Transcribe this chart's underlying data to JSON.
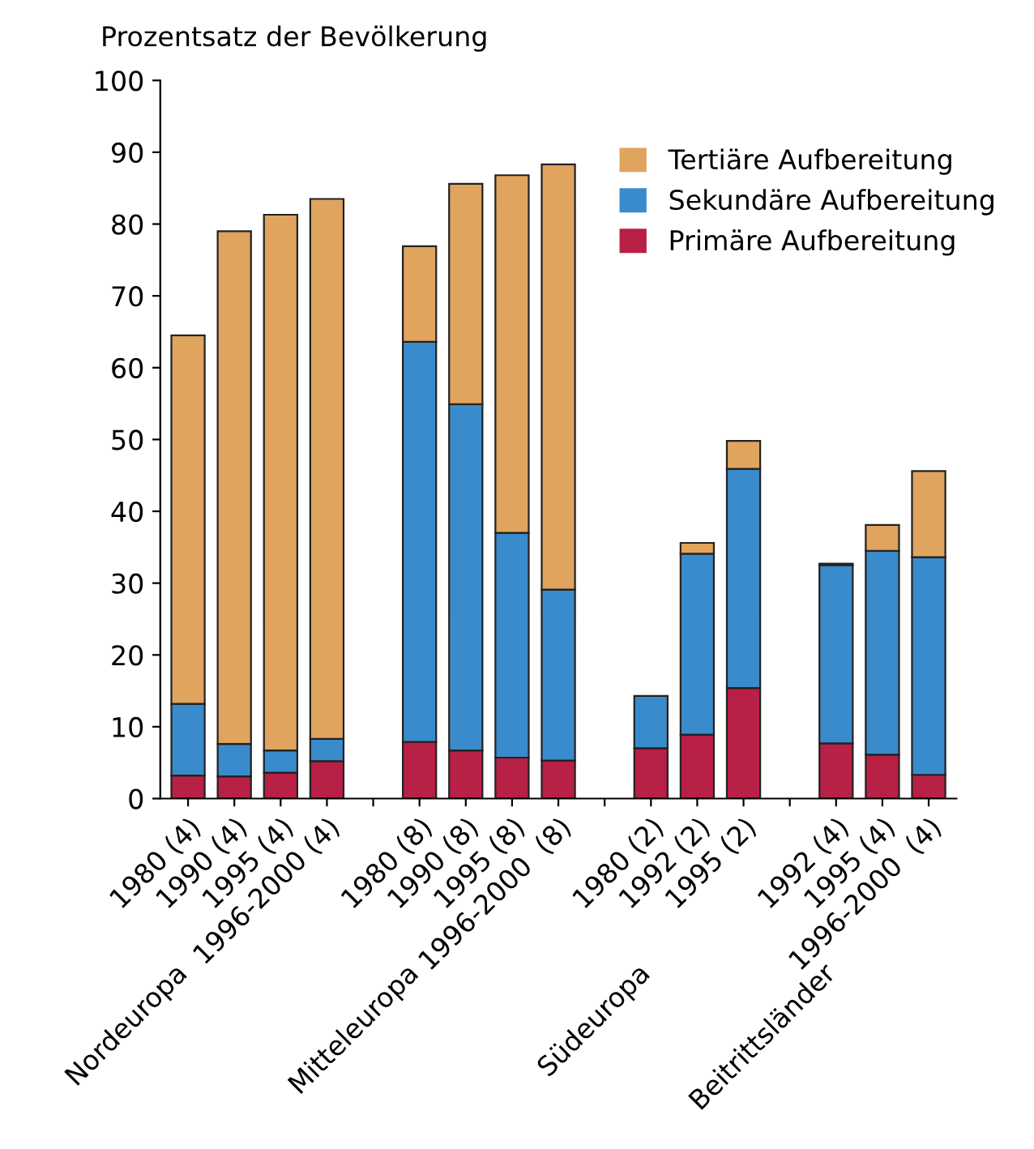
{
  "chart_data": {
    "type": "bar",
    "stacked": true,
    "ylabel": "Prozentsatz der Bevölkerung",
    "categories": [
      "1980 (4)",
      "1990 (4)",
      "1995 (4)",
      "1996-2000 (4)",
      null,
      "1980 (8)",
      "1990 (8)",
      "1995 (8)",
      "1996-2000  (8)",
      null,
      "1980 (2)",
      "1992 (2)",
      "1995 (2)",
      null,
      "1992 (4)",
      "1995 (4)",
      "1996-2000  (4)"
    ],
    "series": [
      {
        "name": "Primäre Aufbereitung",
        "color": "#b82046",
        "values": [
          3.2,
          3.1,
          3.6,
          5.2,
          null,
          7.9,
          6.7,
          5.7,
          5.3,
          null,
          7.0,
          8.9,
          15.4,
          null,
          7.7,
          6.1,
          3.3
        ]
      },
      {
        "name": "Sekundäre Aufbereitung",
        "color": "#3a8bcb",
        "values": [
          10.0,
          4.5,
          3.1,
          3.1,
          null,
          55.7,
          48.2,
          31.3,
          23.8,
          null,
          7.3,
          25.2,
          30.5,
          null,
          24.8,
          28.4,
          30.3
        ]
      },
      {
        "name": "Tertiäre Aufbereitung",
        "color": "#e0a45e",
        "values": [
          51.3,
          71.4,
          74.6,
          75.2,
          null,
          13.3,
          30.7,
          49.8,
          59.2,
          null,
          null,
          1.5,
          3.9,
          null,
          0.2,
          3.6,
          12.0
        ]
      }
    ],
    "annotations": [
      "Nordeuropa",
      "Mitteleuropa",
      "Südeuropa",
      "Beitrittsländer"
    ],
    "ylim": [
      0,
      100
    ],
    "yticks": [
      0,
      10,
      20,
      30,
      40,
      50,
      60,
      70,
      80,
      90,
      100
    ],
    "grid": false,
    "legend": "top right"
  }
}
